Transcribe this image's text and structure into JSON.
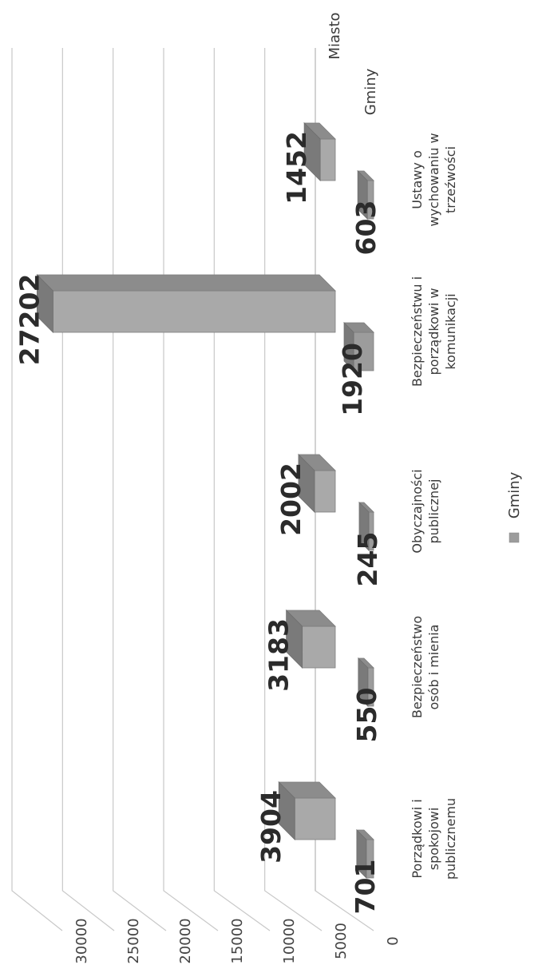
{
  "chart_data": {
    "type": "bar",
    "categories": [
      [
        "Porządkowi i",
        "spokojowi",
        "publicznemu"
      ],
      [
        "Bezpieczeństwo",
        "osób i mienia"
      ],
      [
        "Obyczajności",
        "publicznej"
      ],
      [
        "Bezpieczeństwu i",
        "porządkowi w",
        "komunikacji"
      ],
      [
        "Ustawy o",
        "wychowaniu w",
        "trzeźwości"
      ]
    ],
    "series": [
      {
        "name": "Gminy",
        "values": [
          701,
          550,
          245,
          1920,
          603
        ],
        "color": "#9c9c9c"
      },
      {
        "name": "Miasto",
        "values": [
          3904,
          3183,
          2002,
          27202,
          1452
        ],
        "color": "#a9a9a9"
      }
    ],
    "ylim": [
      0,
      30000
    ],
    "yticks": [
      0,
      5000,
      10000,
      15000,
      20000,
      25000,
      30000
    ],
    "grid": true,
    "legend": {
      "position": "bottom",
      "entries": [
        "Gminy"
      ]
    },
    "orientation": "rotated-90",
    "style": "3d-columns"
  }
}
